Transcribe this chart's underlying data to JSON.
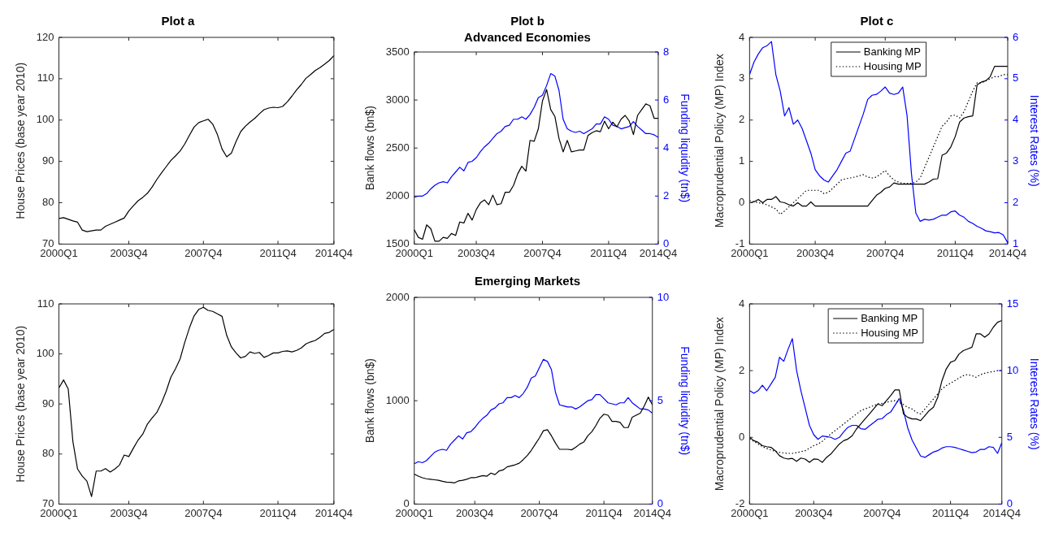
{
  "chart_data": [
    {
      "type": "line",
      "title": "Plot a",
      "ylabel": "House Prices (base year 2010)",
      "categories": [
        "2000Q1",
        null,
        null,
        null,
        null,
        null,
        null,
        null,
        null,
        null,
        null,
        null,
        null,
        null,
        null,
        "2003Q4",
        null,
        null,
        null,
        null,
        null,
        null,
        null,
        null,
        null,
        null,
        null,
        null,
        null,
        null,
        null,
        "2007Q4",
        null,
        null,
        null,
        null,
        null,
        null,
        null,
        null,
        null,
        null,
        null,
        null,
        null,
        null,
        null,
        "2011Q4",
        null,
        null,
        null,
        null,
        null,
        null,
        null,
        null,
        null,
        null,
        null,
        "2014Q4"
      ],
      "series": [
        {
          "color": "#000000",
          "values": [
            76.2,
            76.4,
            76,
            75.6,
            75.3,
            73.4,
            73,
            73.2,
            73.4,
            73.4,
            74.3,
            74.8,
            75.3,
            75.8,
            76.3,
            78,
            79.3,
            80.5,
            81.3,
            82.3,
            83.8,
            85.6,
            87.2,
            88.7,
            90.2,
            91.3,
            92.5,
            94.2,
            96.3,
            98.3,
            99.4,
            99.8,
            100.2,
            99,
            96.5,
            93,
            91.1,
            92,
            94.8,
            97.2,
            98.5,
            99.5,
            100.4,
            101.5,
            102.5,
            102.9,
            103.1,
            103,
            103.3,
            104.4,
            105.8,
            107.3,
            108.6,
            110.1,
            111,
            112,
            112.7,
            113.5,
            114.4,
            115.6
          ]
        }
      ],
      "ylim": [
        70,
        120
      ],
      "yticks": [
        70,
        80,
        90,
        100,
        110,
        120
      ]
    },
    {
      "type": "line",
      "title": "Plot b",
      "subtitle": "Advanced Economies",
      "ylabel": "Bank flows (bn$)",
      "y2label": "Funding liquidity (tn$)",
      "categories": [
        "2000Q1",
        null,
        null,
        null,
        null,
        null,
        null,
        null,
        null,
        null,
        null,
        null,
        null,
        null,
        null,
        "2003Q4",
        null,
        null,
        null,
        null,
        null,
        null,
        null,
        null,
        null,
        null,
        null,
        null,
        null,
        null,
        null,
        "2007Q4",
        null,
        null,
        null,
        null,
        null,
        null,
        null,
        null,
        null,
        null,
        null,
        null,
        null,
        null,
        null,
        "2011Q4",
        null,
        null,
        null,
        null,
        null,
        null,
        null,
        null,
        null,
        null,
        null,
        "2014Q4"
      ],
      "series": [
        {
          "color": "#000000",
          "values": [
            1650,
            1570,
            1550,
            1700,
            1660,
            1530,
            1530,
            1570,
            1560,
            1610,
            1590,
            1730,
            1720,
            1820,
            1750,
            1860,
            1930,
            1960,
            1910,
            2010,
            1910,
            1920,
            2040,
            2040,
            2110,
            2230,
            2310,
            2260,
            2580,
            2570,
            2700,
            2990,
            3110,
            2900,
            2830,
            2600,
            2460,
            2580,
            2460,
            2470,
            2480,
            2480,
            2630,
            2660,
            2680,
            2670,
            2780,
            2700,
            2770,
            2720,
            2800,
            2840,
            2780,
            2640,
            2840,
            2900,
            2960,
            2940,
            2810,
            2810
          ]
        },
        {
          "color": "#0000ff",
          "axis": "y2",
          "values": [
            1.95,
            2,
            2,
            2.1,
            2.3,
            2.45,
            2.55,
            2.6,
            2.55,
            2.8,
            3,
            3.2,
            3.05,
            3.4,
            3.45,
            3.6,
            3.85,
            4.05,
            4.2,
            4.4,
            4.6,
            4.7,
            4.9,
            4.95,
            5.2,
            5.2,
            5.3,
            5.2,
            5.4,
            5.7,
            6.1,
            6.2,
            6.6,
            7.1,
            7,
            6.4,
            5.2,
            4.8,
            4.7,
            4.65,
            4.7,
            4.6,
            4.7,
            4.8,
            5,
            5,
            5.3,
            5.2,
            4.95,
            4.9,
            4.8,
            4.85,
            4.9,
            5.1,
            4.9,
            4.75,
            4.6,
            4.6,
            4.55,
            4.45
          ]
        }
      ],
      "ylim": [
        1500,
        3500
      ],
      "yticks": [
        1500,
        2000,
        2500,
        3000,
        3500
      ],
      "y2lim": [
        0,
        8
      ],
      "y2ticks": [
        0,
        2,
        4,
        6,
        8
      ]
    },
    {
      "type": "line",
      "title": "Plot c",
      "ylabel": "Macroprudential Policy (MP) Index",
      "y2label": "Interest Rates (%)",
      "legend": "top",
      "categories": [
        "2000Q1",
        null,
        null,
        null,
        null,
        null,
        null,
        null,
        null,
        null,
        null,
        null,
        null,
        null,
        null,
        "2003Q4",
        null,
        null,
        null,
        null,
        null,
        null,
        null,
        null,
        null,
        null,
        null,
        null,
        null,
        null,
        null,
        "2007Q4",
        null,
        null,
        null,
        null,
        null,
        null,
        null,
        null,
        null,
        null,
        null,
        null,
        null,
        null,
        null,
        "2011Q4",
        null,
        null,
        null,
        null,
        null,
        null,
        null,
        null,
        null,
        null,
        null,
        "2014Q4"
      ],
      "series": [
        {
          "name": "Banking MP",
          "color": "#000000",
          "line_style": "solid",
          "values": [
            0,
            0.02,
            0.08,
            0,
            0.08,
            0.08,
            0.15,
            0.02,
            0,
            -0.05,
            -0.08,
            0,
            -0.08,
            -0.08,
            0.02,
            -0.08,
            -0.08,
            -0.08,
            -0.08,
            -0.08,
            -0.08,
            -0.08,
            -0.08,
            -0.08,
            -0.08,
            -0.08,
            -0.08,
            -0.08,
            0.05,
            0.18,
            0.25,
            0.35,
            0.38,
            0.48,
            0.45,
            0.45,
            0.45,
            0.45,
            0.45,
            0.45,
            0.45,
            0.5,
            0.57,
            0.58,
            1.15,
            1.2,
            1.35,
            1.6,
            1.95,
            2.05,
            2.08,
            2.1,
            2.85,
            2.92,
            2.95,
            3.05,
            3.3,
            3.3,
            3.3,
            3.3
          ]
        },
        {
          "name": "Housing MP",
          "color": "#000000",
          "line_style": "dotted",
          "values": [
            0.05,
            0.03,
            0,
            -0.02,
            -0.05,
            -0.1,
            -0.15,
            -0.28,
            -0.2,
            -0.1,
            0,
            0.1,
            0.2,
            0.3,
            0.3,
            0.3,
            0.3,
            0.22,
            0.25,
            0.35,
            0.45,
            0.55,
            0.58,
            0.6,
            0.62,
            0.65,
            0.68,
            0.62,
            0.6,
            0.62,
            0.7,
            0.78,
            0.65,
            0.55,
            0.5,
            0.47,
            0.47,
            0.47,
            0.5,
            0.6,
            0.85,
            1.1,
            1.35,
            1.6,
            1.85,
            1.95,
            2.1,
            2.12,
            2.05,
            2.2,
            2.45,
            2.7,
            2.9,
            2.9,
            2.95,
            3,
            3.05,
            3.05,
            3.1,
            3.1
          ]
        },
        {
          "color": "#0000ff",
          "axis": "y2",
          "values": [
            5.1,
            5.4,
            5.6,
            5.75,
            5.8,
            5.9,
            5.1,
            4.7,
            4.1,
            4.3,
            3.9,
            4,
            3.8,
            3.5,
            3.2,
            2.8,
            2.65,
            2.55,
            2.5,
            2.65,
            2.8,
            3,
            3.2,
            3.25,
            3.55,
            3.85,
            4.15,
            4.5,
            4.6,
            4.62,
            4.7,
            4.8,
            4.65,
            4.62,
            4.65,
            4.8,
            4.1,
            2.7,
            1.75,
            1.55,
            1.6,
            1.58,
            1.6,
            1.65,
            1.7,
            1.7,
            1.78,
            1.8,
            1.7,
            1.65,
            1.55,
            1.5,
            1.43,
            1.38,
            1.32,
            1.3,
            1.27,
            1.28,
            1.22,
            1.03
          ]
        }
      ],
      "ylim": [
        -1,
        4
      ],
      "yticks": [
        -1,
        0,
        1,
        2,
        3,
        4
      ],
      "y2lim": [
        1,
        6
      ],
      "y2ticks": [
        1,
        2,
        3,
        4,
        5,
        6
      ]
    },
    {
      "type": "line",
      "ylabel": "House Prices (base year 2010)",
      "categories": [
        "2000Q1",
        null,
        null,
        null,
        null,
        null,
        null,
        null,
        null,
        null,
        null,
        null,
        null,
        null,
        null,
        "2003Q4",
        null,
        null,
        null,
        null,
        null,
        null,
        null,
        null,
        null,
        null,
        null,
        null,
        null,
        null,
        null,
        "2007Q4",
        null,
        null,
        null,
        null,
        null,
        null,
        null,
        null,
        null,
        null,
        null,
        null,
        null,
        null,
        null,
        "2011Q4",
        null,
        null,
        null,
        null,
        null,
        null,
        null,
        null,
        null,
        null,
        null,
        "2014Q4"
      ],
      "series": [
        {
          "color": "#000000",
          "values": [
            93.2,
            94.8,
            93,
            82.5,
            77,
            75.6,
            74.6,
            71.5,
            76.6,
            76.6,
            77.1,
            76.4,
            77,
            77.8,
            79.8,
            79.5,
            81.2,
            82.8,
            84,
            86,
            87.2,
            88.3,
            90.2,
            92.5,
            95.3,
            97,
            99,
            102.3,
            105.2,
            107.6,
            108.9,
            109.3,
            108.7,
            108.5,
            108,
            107.5,
            103.7,
            101.4,
            100.2,
            99.2,
            99.5,
            100.4,
            100.1,
            100.3,
            99.3,
            99.7,
            100.2,
            100.2,
            100.5,
            100.6,
            100.4,
            100.7,
            101.2,
            102,
            102.4,
            102.7,
            103.3,
            104.1,
            104.3,
            104.9
          ]
        }
      ],
      "ylim": [
        70,
        110
      ],
      "yticks": [
        70,
        80,
        90,
        100,
        110
      ]
    },
    {
      "type": "line",
      "title": "Emerging Markets",
      "ylabel": "Bank flows (bn$)",
      "y2label": "Funding liquidity (tn$)",
      "categories": [
        "2000Q1",
        null,
        null,
        null,
        null,
        null,
        null,
        null,
        null,
        null,
        null,
        null,
        null,
        null,
        null,
        "2003Q4",
        null,
        null,
        null,
        null,
        null,
        null,
        null,
        null,
        null,
        null,
        null,
        null,
        null,
        null,
        null,
        "2007Q4",
        null,
        null,
        null,
        null,
        null,
        null,
        null,
        null,
        null,
        null,
        null,
        null,
        null,
        null,
        null,
        "2011Q4",
        null,
        null,
        null,
        null,
        null,
        null,
        null,
        null,
        null,
        null,
        null,
        "2014Q4"
      ],
      "series": [
        {
          "color": "#000000",
          "values": [
            290,
            270,
            255,
            245,
            240,
            235,
            230,
            220,
            212,
            210,
            205,
            225,
            230,
            240,
            255,
            255,
            265,
            275,
            270,
            300,
            285,
            320,
            330,
            360,
            370,
            380,
            395,
            430,
            470,
            520,
            580,
            640,
            710,
            720,
            660,
            590,
            530,
            530,
            530,
            525,
            550,
            580,
            600,
            660,
            700,
            760,
            830,
            870,
            860,
            800,
            800,
            790,
            740,
            740,
            840,
            860,
            880,
            950,
            1035,
            960
          ]
        },
        {
          "color": "#0000ff",
          "axis": "y2",
          "values": [
            1.95,
            2.05,
            2,
            2.1,
            2.3,
            2.5,
            2.6,
            2.65,
            2.6,
            2.9,
            3.1,
            3.3,
            3.15,
            3.45,
            3.5,
            3.7,
            3.95,
            4.15,
            4.3,
            4.55,
            4.65,
            4.85,
            4.9,
            5.15,
            5.15,
            5.25,
            5.15,
            5.35,
            5.65,
            6.1,
            6.2,
            6.6,
            7,
            6.9,
            6.5,
            5.4,
            4.8,
            4.75,
            4.7,
            4.7,
            4.6,
            4.7,
            4.85,
            5,
            5.05,
            5.3,
            5.3,
            5.1,
            4.9,
            4.85,
            4.8,
            4.9,
            4.9,
            5.15,
            4.9,
            4.75,
            4.6,
            4.6,
            4.55,
            4.4
          ]
        }
      ],
      "ylim": [
        0,
        2000
      ],
      "yticks": [
        0,
        1000,
        2000
      ],
      "y2lim": [
        0,
        10
      ],
      "y2ticks": [
        0,
        5,
        10
      ]
    },
    {
      "type": "line",
      "ylabel": "Macroprudential Policy (MP) Index",
      "y2label": "Interest Rates (%)",
      "legend": "top",
      "categories": [
        "2000Q1",
        null,
        null,
        null,
        null,
        null,
        null,
        null,
        null,
        null,
        null,
        null,
        null,
        null,
        null,
        "2003Q4",
        null,
        null,
        null,
        null,
        null,
        null,
        null,
        null,
        null,
        null,
        null,
        null,
        null,
        null,
        null,
        "2007Q4",
        null,
        null,
        null,
        null,
        null,
        null,
        null,
        null,
        null,
        null,
        null,
        null,
        null,
        null,
        null,
        "2011Q4",
        null,
        null,
        null,
        null,
        null,
        null,
        null,
        null,
        null,
        null,
        null,
        "2014Q4"
      ],
      "series": [
        {
          "name": "Banking MP",
          "color": "#000000",
          "line_style": "solid",
          "values": [
            0,
            -0.1,
            -0.15,
            -0.25,
            -0.28,
            -0.3,
            -0.4,
            -0.55,
            -0.62,
            -0.65,
            -0.63,
            -0.72,
            -0.62,
            -0.65,
            -0.75,
            -0.65,
            -0.66,
            -0.75,
            -0.6,
            -0.5,
            -0.35,
            -0.2,
            -0.1,
            -0.05,
            0.05,
            0.25,
            0.4,
            0.55,
            0.7,
            0.85,
            1,
            0.95,
            1.1,
            1.25,
            1.42,
            1.42,
            0.7,
            0.6,
            0.55,
            0.55,
            0.5,
            0.65,
            0.8,
            0.9,
            1.2,
            1.7,
            2.05,
            2.25,
            2.3,
            2.5,
            2.6,
            2.65,
            2.7,
            3.1,
            3.1,
            3,
            3.1,
            3.3,
            3.45,
            3.5
          ]
        },
        {
          "name": "Housing MP",
          "color": "#000000",
          "line_style": "dotted",
          "values": [
            -0.05,
            -0.12,
            -0.2,
            -0.28,
            -0.33,
            -0.38,
            -0.42,
            -0.45,
            -0.47,
            -0.48,
            -0.48,
            -0.46,
            -0.43,
            -0.4,
            -0.33,
            -0.25,
            -0.2,
            -0.12,
            0,
            0.1,
            0.2,
            0.3,
            0.4,
            0.5,
            0.6,
            0.7,
            0.8,
            0.85,
            0.9,
            0.95,
            1,
            1.02,
            1.05,
            1.08,
            1.1,
            1.05,
            0.98,
            0.9,
            0.85,
            0.75,
            0.7,
            0.85,
            1,
            1.15,
            1.3,
            1.45,
            1.55,
            1.62,
            1.7,
            1.78,
            1.85,
            1.88,
            1.85,
            1.8,
            1.88,
            1.92,
            1.95,
            1.97,
            2,
            2
          ]
        },
        {
          "color": "#0000ff",
          "axis": "y2",
          "values": [
            8.5,
            8.3,
            8.5,
            8.9,
            8.5,
            9,
            9.5,
            11,
            10.7,
            11.6,
            12.4,
            10,
            8.5,
            7.2,
            5.9,
            5.2,
            4.85,
            5.1,
            5.05,
            5,
            4.85,
            5,
            5.4,
            5.75,
            5.9,
            5.9,
            5.65,
            5.6,
            5.85,
            6.1,
            6.35,
            6.4,
            6.7,
            6.9,
            7.4,
            7.9,
            7,
            5.7,
            4.8,
            4.2,
            3.6,
            3.5,
            3.7,
            3.9,
            4,
            4.2,
            4.3,
            4.3,
            4.25,
            4.15,
            4.05,
            3.95,
            3.85,
            3.9,
            4.1,
            4.1,
            4.3,
            4.25,
            3.8,
            4.6
          ]
        }
      ],
      "ylim": [
        -2,
        4
      ],
      "yticks": [
        -2,
        0,
        2,
        4
      ],
      "y2lim": [
        0,
        15
      ],
      "y2ticks": [
        0,
        5,
        10,
        15
      ]
    }
  ]
}
